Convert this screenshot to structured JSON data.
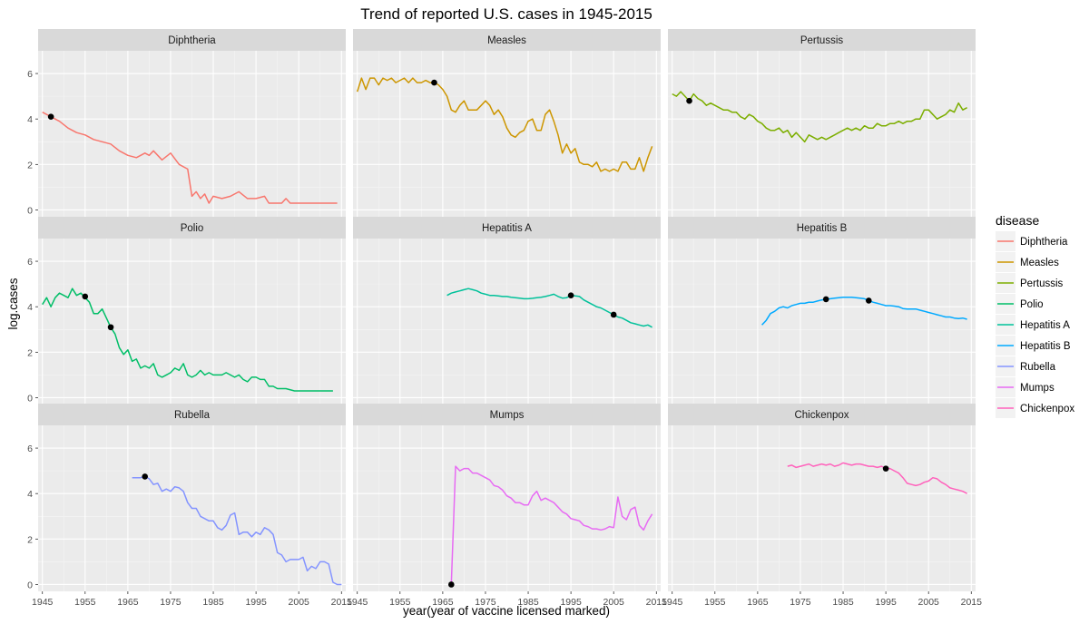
{
  "chart_data": {
    "type": "line",
    "title": "Trend of reported U.S. cases in 1945-2015",
    "xlabel": "year(year of vaccine licensed marked)",
    "ylabel": "log.cases",
    "xlim": [
      1944,
      2016
    ],
    "ylim": [
      -0.3,
      7
    ],
    "x_ticks": [
      1945,
      1955,
      1965,
      1975,
      1985,
      1995,
      2005,
      2015
    ],
    "y_ticks": [
      0,
      2,
      4,
      6
    ],
    "grid": true,
    "legend_position": "right",
    "legend_title": "disease",
    "series": [
      {
        "name": "Diphtheria",
        "color": "#F8766D",
        "x": [
          1945,
          1947,
          1949,
          1951,
          1953,
          1955,
          1957,
          1959,
          1961,
          1963,
          1964,
          1965,
          1967,
          1969,
          1970,
          1971,
          1973,
          1975,
          1977,
          1979,
          1980,
          1981,
          1982,
          1983,
          1984,
          1985,
          1987,
          1989,
          1991,
          1993,
          1995,
          1997,
          1998,
          1999,
          2001,
          2002,
          2003,
          2005,
          2009,
          2014
        ],
        "y": [
          4.3,
          4.1,
          3.9,
          3.6,
          3.4,
          3.3,
          3.1,
          3.0,
          2.9,
          2.6,
          2.5,
          2.4,
          2.3,
          2.5,
          2.4,
          2.6,
          2.2,
          2.5,
          2.0,
          1.8,
          0.6,
          0.8,
          0.5,
          0.7,
          0.3,
          0.6,
          0.5,
          0.6,
          0.8,
          0.5,
          0.5,
          0.6,
          0.3,
          0.3,
          0.3,
          0.5,
          0.3,
          0.3,
          0.3,
          0.3
        ],
        "marks": [
          {
            "x": 1947,
            "y": 4.1
          }
        ]
      },
      {
        "name": "Measles",
        "color": "#CD9600",
        "x": [
          1945,
          1946,
          1947,
          1948,
          1949,
          1950,
          1951,
          1952,
          1953,
          1954,
          1955,
          1956,
          1957,
          1958,
          1959,
          1960,
          1961,
          1962,
          1963,
          1964,
          1965,
          1966,
          1967,
          1968,
          1969,
          1970,
          1971,
          1972,
          1973,
          1974,
          1975,
          1976,
          1977,
          1978,
          1979,
          1980,
          1981,
          1982,
          1983,
          1984,
          1985,
          1986,
          1987,
          1988,
          1989,
          1990,
          1991,
          1992,
          1993,
          1994,
          1995,
          1996,
          1997,
          1998,
          1999,
          2000,
          2001,
          2002,
          2003,
          2004,
          2005,
          2006,
          2007,
          2008,
          2009,
          2010,
          2011,
          2012,
          2013,
          2014
        ],
        "y": [
          5.2,
          5.8,
          5.3,
          5.8,
          5.8,
          5.5,
          5.8,
          5.7,
          5.8,
          5.6,
          5.7,
          5.8,
          5.6,
          5.8,
          5.6,
          5.6,
          5.7,
          5.6,
          5.6,
          5.5,
          5.3,
          5.0,
          4.4,
          4.3,
          4.6,
          4.8,
          4.4,
          4.4,
          4.4,
          4.6,
          4.8,
          4.6,
          4.2,
          4.4,
          4.1,
          3.6,
          3.3,
          3.2,
          3.4,
          3.5,
          3.9,
          4.0,
          3.5,
          3.5,
          4.2,
          4.4,
          3.9,
          3.3,
          2.5,
          2.9,
          2.5,
          2.7,
          2.1,
          2.0,
          2.0,
          1.9,
          2.1,
          1.7,
          1.8,
          1.7,
          1.8,
          1.7,
          2.1,
          2.1,
          1.8,
          1.8,
          2.3,
          1.7,
          2.3,
          2.8
        ],
        "marks": [
          {
            "x": 1963,
            "y": 5.6
          }
        ]
      },
      {
        "name": "Pertussis",
        "color": "#7CAE00",
        "x": [
          1945,
          1946,
          1947,
          1948,
          1949,
          1950,
          1951,
          1952,
          1953,
          1954,
          1955,
          1956,
          1957,
          1958,
          1959,
          1960,
          1961,
          1962,
          1963,
          1964,
          1965,
          1966,
          1967,
          1968,
          1969,
          1970,
          1971,
          1972,
          1973,
          1974,
          1975,
          1976,
          1977,
          1978,
          1979,
          1980,
          1981,
          1982,
          1983,
          1984,
          1985,
          1986,
          1987,
          1988,
          1989,
          1990,
          1991,
          1992,
          1993,
          1994,
          1995,
          1996,
          1997,
          1998,
          1999,
          2000,
          2001,
          2002,
          2003,
          2004,
          2005,
          2006,
          2007,
          2008,
          2009,
          2010,
          2011,
          2012,
          2013,
          2014
        ],
        "y": [
          5.1,
          5.0,
          5.2,
          5.0,
          4.8,
          5.1,
          4.9,
          4.8,
          4.6,
          4.7,
          4.6,
          4.5,
          4.4,
          4.4,
          4.3,
          4.3,
          4.1,
          4.0,
          4.2,
          4.1,
          3.9,
          3.8,
          3.6,
          3.5,
          3.5,
          3.6,
          3.4,
          3.5,
          3.2,
          3.4,
          3.2,
          3.0,
          3.3,
          3.2,
          3.1,
          3.2,
          3.1,
          3.2,
          3.3,
          3.4,
          3.5,
          3.6,
          3.5,
          3.6,
          3.5,
          3.7,
          3.6,
          3.6,
          3.8,
          3.7,
          3.7,
          3.8,
          3.8,
          3.9,
          3.8,
          3.9,
          3.9,
          4.0,
          4.0,
          4.4,
          4.4,
          4.2,
          4.0,
          4.1,
          4.2,
          4.4,
          4.3,
          4.7,
          4.4,
          4.5
        ],
        "marks": [
          {
            "x": 1949,
            "y": 4.8
          }
        ]
      },
      {
        "name": "Polio",
        "color": "#00BE67",
        "x": [
          1945,
          1946,
          1947,
          1948,
          1949,
          1950,
          1951,
          1952,
          1953,
          1954,
          1955,
          1956,
          1957,
          1958,
          1959,
          1960,
          1961,
          1962,
          1963,
          1964,
          1965,
          1966,
          1967,
          1968,
          1969,
          1970,
          1971,
          1972,
          1973,
          1974,
          1975,
          1976,
          1977,
          1978,
          1979,
          1980,
          1981,
          1982,
          1983,
          1984,
          1985,
          1986,
          1987,
          1988,
          1989,
          1990,
          1991,
          1992,
          1993,
          1994,
          1995,
          1996,
          1997,
          1998,
          1999,
          2000,
          2002,
          2004,
          2006,
          2008,
          2010,
          2013
        ],
        "y": [
          4.1,
          4.4,
          4.0,
          4.4,
          4.6,
          4.5,
          4.4,
          4.8,
          4.5,
          4.6,
          4.4,
          4.2,
          3.7,
          3.7,
          3.9,
          3.5,
          3.1,
          2.8,
          2.2,
          1.9,
          2.1,
          1.6,
          1.7,
          1.3,
          1.4,
          1.3,
          1.5,
          1.0,
          0.9,
          1.0,
          1.1,
          1.3,
          1.2,
          1.5,
          1.0,
          0.9,
          1.0,
          1.2,
          1.0,
          1.1,
          1.0,
          1.0,
          1.0,
          1.1,
          1.0,
          0.9,
          1.0,
          0.8,
          0.7,
          0.9,
          0.9,
          0.8,
          0.8,
          0.5,
          0.5,
          0.4,
          0.4,
          0.3,
          0.3,
          0.3,
          0.3,
          0.3
        ],
        "marks": [
          {
            "x": 1955,
            "y": 4.45
          },
          {
            "x": 1961,
            "y": 3.1
          }
        ]
      },
      {
        "name": "Hepatitis A",
        "color": "#00C19A",
        "x": [
          1966,
          1967,
          1968,
          1969,
          1970,
          1971,
          1972,
          1973,
          1974,
          1975,
          1976,
          1977,
          1978,
          1979,
          1980,
          1981,
          1982,
          1983,
          1984,
          1985,
          1986,
          1987,
          1988,
          1989,
          1990,
          1991,
          1992,
          1993,
          1994,
          1995,
          1996,
          1997,
          1998,
          1999,
          2000,
          2001,
          2002,
          2003,
          2004,
          2005,
          2006,
          2007,
          2008,
          2009,
          2010,
          2011,
          2012,
          2013,
          2014
        ],
        "y": [
          4.5,
          4.6,
          4.65,
          4.7,
          4.75,
          4.8,
          4.75,
          4.7,
          4.6,
          4.55,
          4.5,
          4.5,
          4.48,
          4.45,
          4.45,
          4.42,
          4.4,
          4.38,
          4.35,
          4.35,
          4.37,
          4.4,
          4.42,
          4.45,
          4.5,
          4.55,
          4.45,
          4.38,
          4.4,
          4.5,
          4.48,
          4.45,
          4.3,
          4.2,
          4.1,
          4.0,
          3.95,
          3.85,
          3.75,
          3.65,
          3.55,
          3.5,
          3.4,
          3.3,
          3.25,
          3.2,
          3.15,
          3.2,
          3.1
        ],
        "marks": [
          {
            "x": 1995,
            "y": 4.5
          },
          {
            "x": 2005,
            "y": 3.65
          }
        ]
      },
      {
        "name": "Hepatitis B",
        "color": "#00A9FF",
        "x": [
          1966,
          1967,
          1968,
          1969,
          1970,
          1971,
          1972,
          1973,
          1974,
          1975,
          1976,
          1977,
          1978,
          1979,
          1980,
          1981,
          1982,
          1983,
          1984,
          1985,
          1986,
          1987,
          1988,
          1989,
          1990,
          1991,
          1992,
          1993,
          1994,
          1995,
          1996,
          1997,
          1998,
          1999,
          2000,
          2001,
          2002,
          2003,
          2004,
          2005,
          2006,
          2007,
          2008,
          2009,
          2010,
          2011,
          2012,
          2013,
          2014
        ],
        "y": [
          3.2,
          3.4,
          3.7,
          3.8,
          3.95,
          4.0,
          3.95,
          4.05,
          4.1,
          4.15,
          4.15,
          4.2,
          4.2,
          4.25,
          4.3,
          4.33,
          4.35,
          4.38,
          4.4,
          4.42,
          4.42,
          4.42,
          4.4,
          4.38,
          4.35,
          4.27,
          4.2,
          4.15,
          4.1,
          4.05,
          4.05,
          4.03,
          4.0,
          3.92,
          3.9,
          3.9,
          3.9,
          3.85,
          3.8,
          3.75,
          3.7,
          3.65,
          3.6,
          3.55,
          3.55,
          3.5,
          3.48,
          3.5,
          3.45
        ],
        "marks": [
          {
            "x": 1981,
            "y": 4.33
          },
          {
            "x": 1991,
            "y": 4.27
          }
        ]
      },
      {
        "name": "Rubella",
        "color": "#8494FF",
        "x": [
          1966,
          1967,
          1968,
          1969,
          1970,
          1971,
          1972,
          1973,
          1974,
          1975,
          1976,
          1977,
          1978,
          1979,
          1980,
          1981,
          1982,
          1983,
          1984,
          1985,
          1986,
          1987,
          1988,
          1989,
          1990,
          1991,
          1992,
          1993,
          1994,
          1995,
          1996,
          1997,
          1998,
          1999,
          2000,
          2001,
          2002,
          2003,
          2004,
          2005,
          2006,
          2007,
          2008,
          2009,
          2010,
          2011,
          2012,
          2013,
          2014,
          2015
        ],
        "y": [
          4.7,
          4.7,
          4.7,
          4.75,
          4.65,
          4.4,
          4.45,
          4.1,
          4.2,
          4.1,
          4.3,
          4.25,
          4.1,
          3.6,
          3.35,
          3.35,
          3.0,
          2.9,
          2.8,
          2.8,
          2.5,
          2.4,
          2.6,
          3.05,
          3.15,
          2.2,
          2.3,
          2.3,
          2.1,
          2.3,
          2.2,
          2.5,
          2.4,
          2.2,
          1.4,
          1.3,
          1.0,
          1.1,
          1.1,
          1.1,
          1.2,
          0.6,
          0.8,
          0.7,
          1.0,
          1.0,
          0.9,
          0.1,
          0.0,
          0.0
        ],
        "marks": [
          {
            "x": 1969,
            "y": 4.75
          }
        ]
      },
      {
        "name": "Mumps",
        "color": "#E76BF3",
        "x": [
          1967,
          1968,
          1969,
          1970,
          1971,
          1972,
          1973,
          1974,
          1975,
          1976,
          1977,
          1978,
          1979,
          1980,
          1981,
          1982,
          1983,
          1984,
          1985,
          1986,
          1987,
          1988,
          1989,
          1990,
          1991,
          1992,
          1993,
          1994,
          1995,
          1996,
          1997,
          1998,
          1999,
          2000,
          2001,
          2002,
          2003,
          2004,
          2005,
          2006,
          2007,
          2008,
          2009,
          2010,
          2011,
          2012,
          2013,
          2014
        ],
        "y": [
          0.0,
          5.2,
          5.0,
          5.1,
          5.1,
          4.9,
          4.9,
          4.8,
          4.7,
          4.6,
          4.35,
          4.3,
          4.15,
          3.9,
          3.8,
          3.6,
          3.6,
          3.5,
          3.5,
          3.9,
          4.1,
          3.7,
          3.8,
          3.7,
          3.6,
          3.4,
          3.2,
          3.1,
          2.9,
          2.85,
          2.8,
          2.6,
          2.55,
          2.45,
          2.45,
          2.4,
          2.45,
          2.55,
          2.5,
          3.85,
          3.0,
          2.85,
          3.3,
          3.4,
          2.6,
          2.4,
          2.8,
          3.1
        ],
        "marks": [
          {
            "x": 1967,
            "y": 0.0
          }
        ]
      },
      {
        "name": "Chickenpox",
        "color": "#FF62BC",
        "x": [
          1972,
          1973,
          1974,
          1975,
          1976,
          1977,
          1978,
          1979,
          1980,
          1981,
          1982,
          1983,
          1984,
          1985,
          1986,
          1987,
          1988,
          1989,
          1990,
          1991,
          1992,
          1993,
          1994,
          1995,
          1996,
          1997,
          1998,
          1999,
          2000,
          2001,
          2002,
          2003,
          2004,
          2005,
          2006,
          2007,
          2008,
          2009,
          2010,
          2011,
          2012,
          2013,
          2014
        ],
        "y": [
          5.2,
          5.25,
          5.15,
          5.2,
          5.25,
          5.3,
          5.2,
          5.25,
          5.3,
          5.25,
          5.3,
          5.2,
          5.25,
          5.35,
          5.3,
          5.25,
          5.3,
          5.3,
          5.25,
          5.2,
          5.2,
          5.15,
          5.2,
          5.1,
          5.1,
          5.0,
          4.9,
          4.7,
          4.45,
          4.4,
          4.35,
          4.4,
          4.5,
          4.55,
          4.7,
          4.65,
          4.5,
          4.4,
          4.25,
          4.2,
          4.15,
          4.1,
          4.0
        ],
        "marks": [
          {
            "x": 1995,
            "y": 5.1
          }
        ]
      }
    ]
  }
}
